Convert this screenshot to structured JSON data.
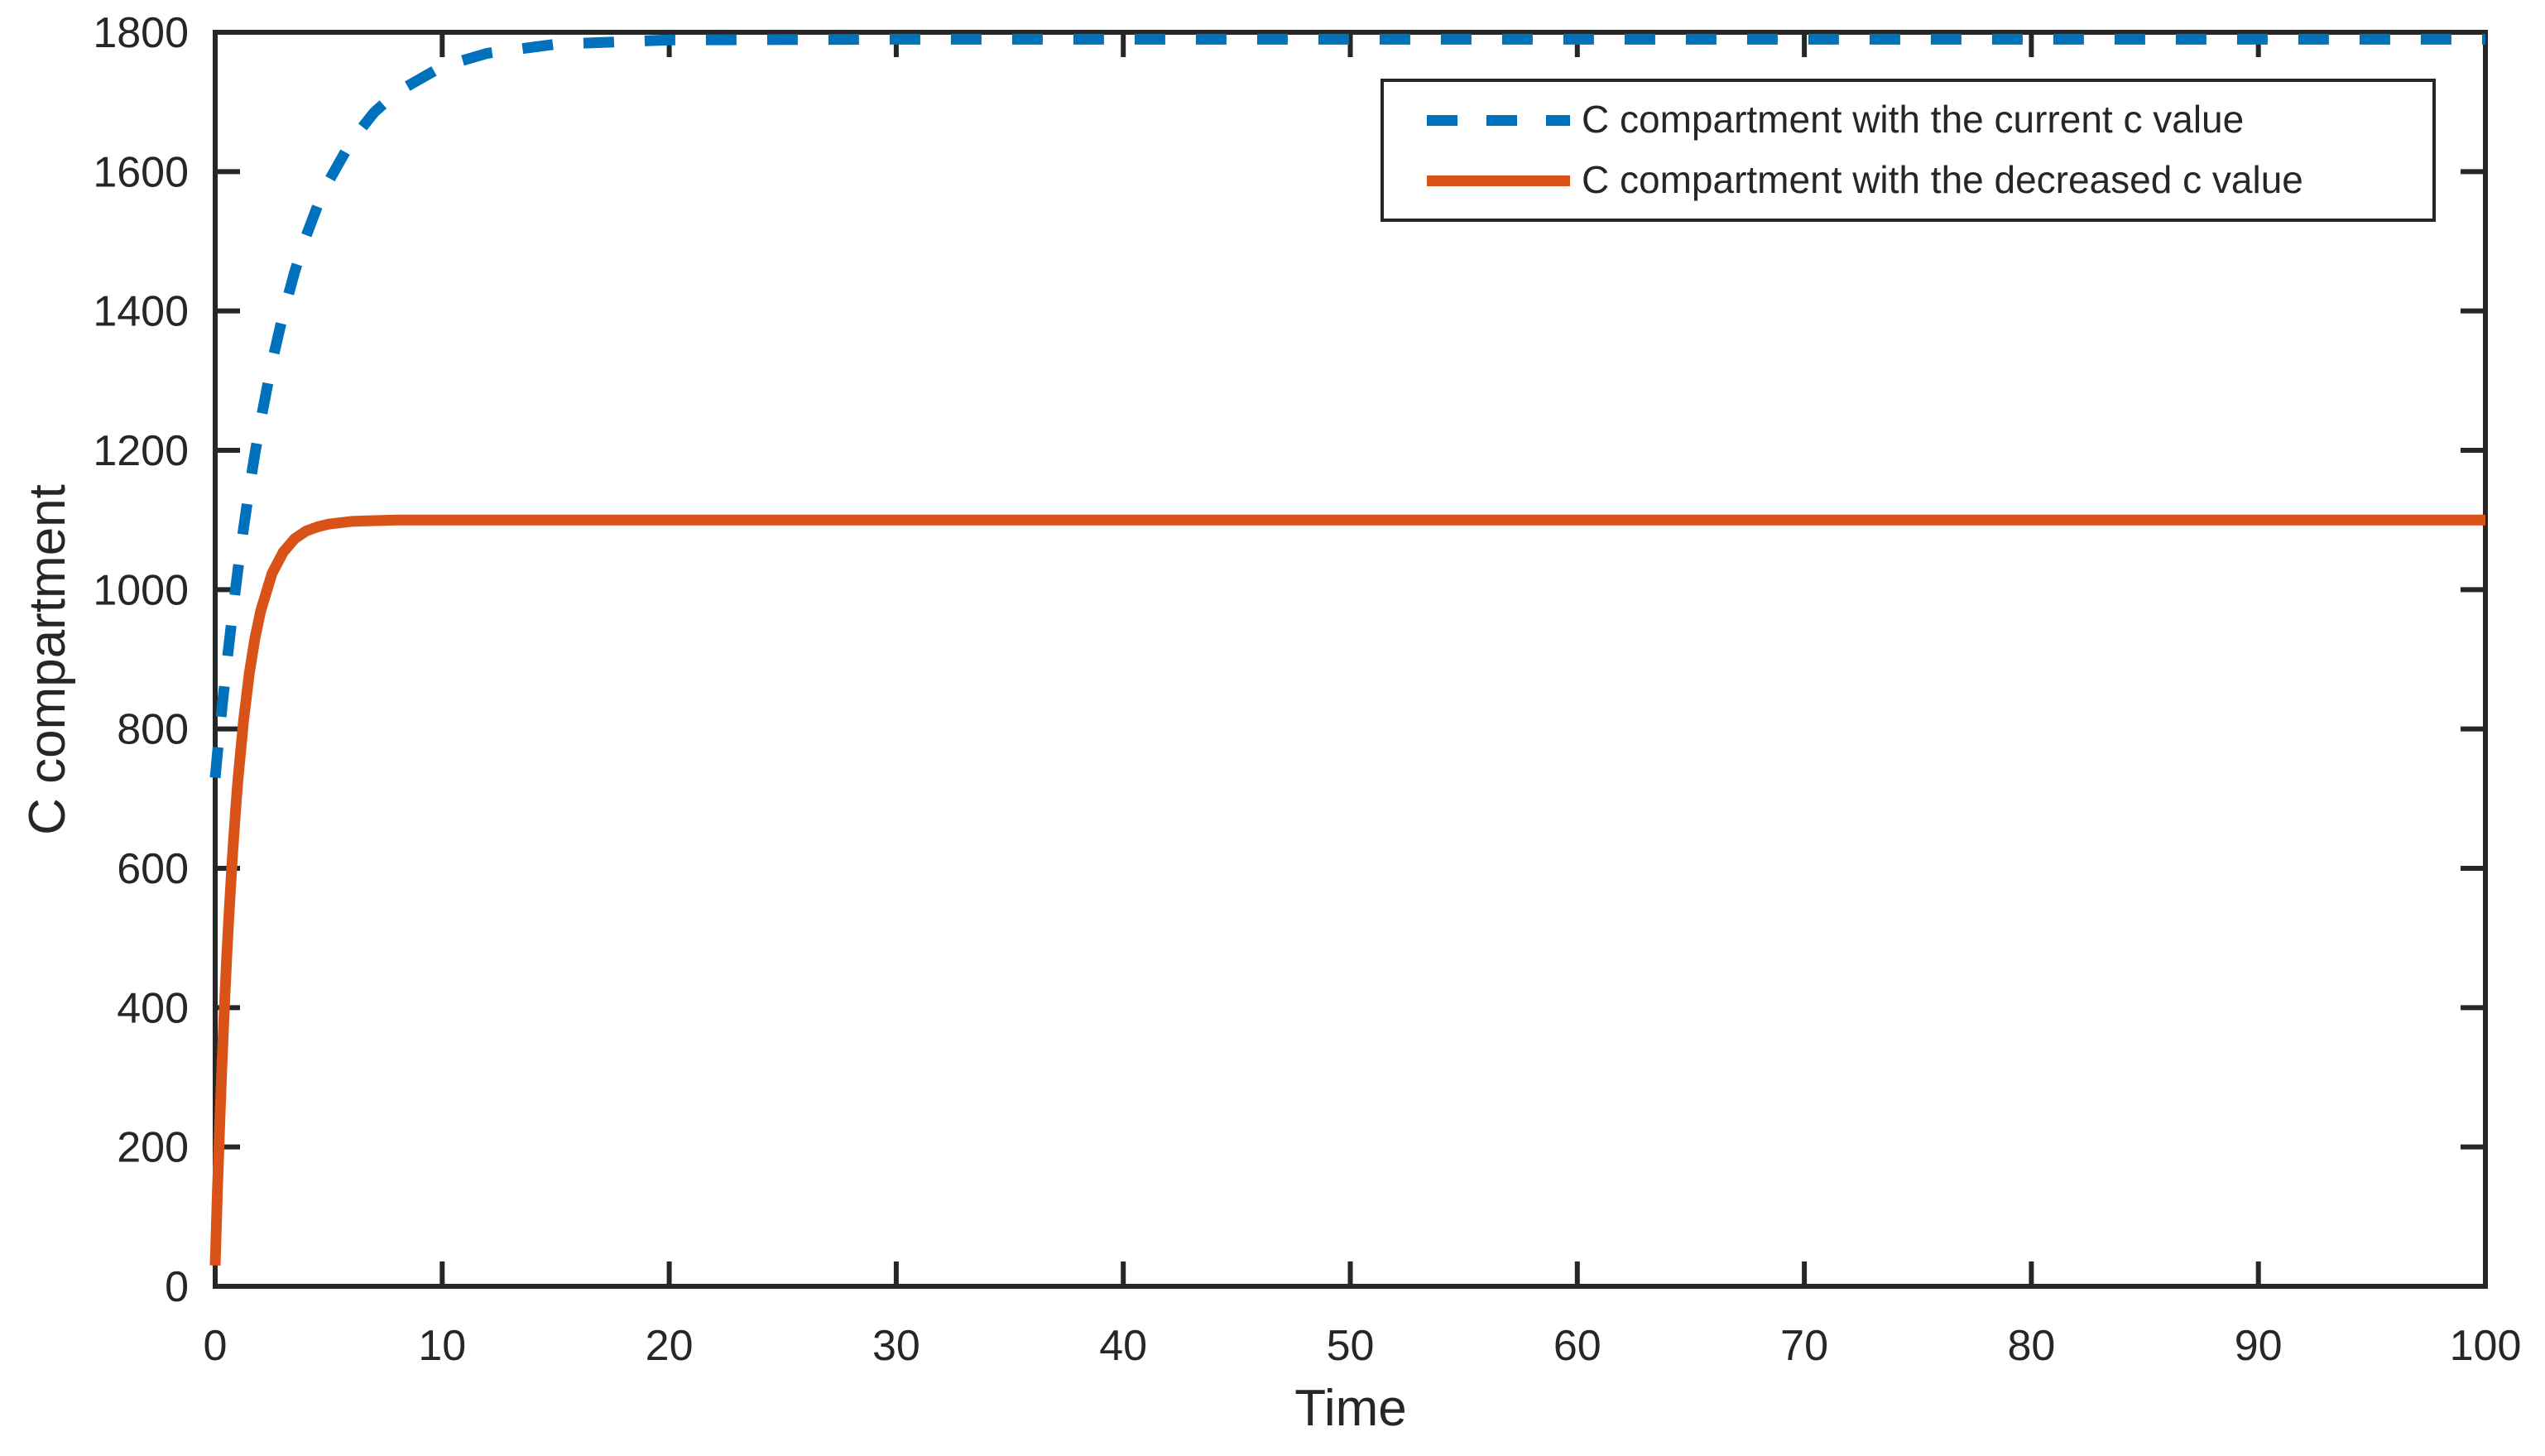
{
  "figure": {
    "background_color": "#ffffff",
    "text_color": "#262626",
    "axis_color": "#262626"
  },
  "chart_data": {
    "type": "line",
    "title": "",
    "xlabel": "Time",
    "ylabel": "C compartment",
    "xlim": [
      0,
      100
    ],
    "ylim": [
      0,
      1800
    ],
    "xticks": [
      0,
      10,
      20,
      30,
      40,
      50,
      60,
      70,
      80,
      90,
      100
    ],
    "yticks": [
      0,
      200,
      400,
      600,
      800,
      1000,
      1200,
      1400,
      1600,
      1800
    ],
    "grid": false,
    "box": true,
    "tick_direction": "in",
    "legend_position": "upper-right-inside",
    "x": [
      0,
      0.1,
      0.2,
      0.3,
      0.4,
      0.5,
      0.6,
      0.75,
      0.9,
      1,
      1.25,
      1.5,
      1.75,
      2,
      2.5,
      3,
      3.5,
      4,
      4.5,
      5,
      6,
      7,
      8,
      10,
      12,
      15,
      20,
      30,
      40,
      50,
      60,
      70,
      80,
      90,
      100
    ],
    "series": [
      {
        "name": "C compartment with the current c value",
        "color": "#0072BD",
        "style": "dashed",
        "asymptote": 1790,
        "values": [
          730,
          765,
          798,
          830,
          861,
          891,
          920,
          962,
          1002,
          1028,
          1088,
          1144,
          1195,
          1242,
          1326,
          1396,
          1456,
          1507,
          1550,
          1586,
          1644,
          1685,
          1714,
          1751,
          1770,
          1783,
          1789,
          1790,
          1790,
          1790,
          1790,
          1790,
          1790,
          1790,
          1790
        ]
      },
      {
        "name": "C compartment with the decreased c value",
        "color": "#D95319",
        "style": "solid",
        "asymptote": 1100,
        "values": [
          30,
          137,
          233,
          319,
          397,
          467,
          530,
          613,
          684,
          726,
          812,
          879,
          930,
          969,
          1023,
          1054,
          1073,
          1084,
          1090,
          1094,
          1098,
          1099,
          1100,
          1100,
          1100,
          1100,
          1100,
          1100,
          1100,
          1100,
          1100,
          1100,
          1100,
          1100,
          1100
        ]
      }
    ]
  }
}
